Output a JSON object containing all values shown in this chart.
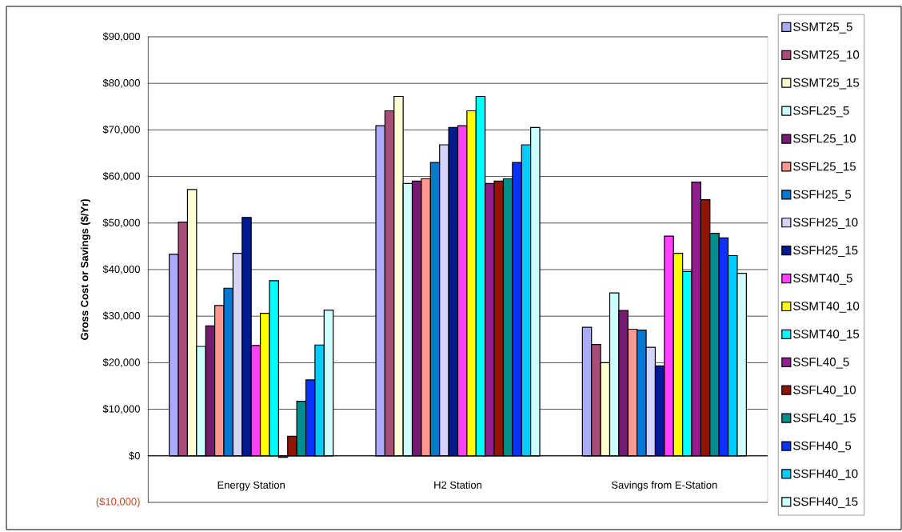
{
  "chart_data": {
    "type": "bar",
    "ylabel": "Gross Cost or Savings ($/Yr)",
    "categories": [
      "Energy Station",
      "H2 Station",
      "Savings from E-Station"
    ],
    "ylim": [
      -10000,
      90000
    ],
    "yticks": [
      {
        "value": -10000,
        "label": "($10,000)"
      },
      {
        "value": 0,
        "label": "$0"
      },
      {
        "value": 10000,
        "label": "$10,000"
      },
      {
        "value": 20000,
        "label": "$20,000"
      },
      {
        "value": 30000,
        "label": "$30,000"
      },
      {
        "value": 40000,
        "label": "$40,000"
      },
      {
        "value": 50000,
        "label": "$50,000"
      },
      {
        "value": 60000,
        "label": "$60,000"
      },
      {
        "value": 70000,
        "label": "$70,000"
      },
      {
        "value": 80000,
        "label": "$80,000"
      },
      {
        "value": 90000,
        "label": "$90,000"
      }
    ],
    "grid": "y",
    "legend": "right",
    "series": [
      {
        "name": "SSMT25_5",
        "color": "#aaaaff",
        "values": [
          43300,
          70900,
          27600
        ]
      },
      {
        "name": "SSMT25_10",
        "color": "#a84c78",
        "values": [
          50200,
          74100,
          23900
        ]
      },
      {
        "name": "SSMT25_15",
        "color": "#ffffd4",
        "values": [
          57200,
          77200,
          20000
        ]
      },
      {
        "name": "SSFL25_5",
        "color": "#ccffff",
        "values": [
          23500,
          58500,
          35000
        ]
      },
      {
        "name": "SSFL25_10",
        "color": "#761a70",
        "values": [
          27900,
          59000,
          31200
        ]
      },
      {
        "name": "SSFL25_15",
        "color": "#ff9890",
        "values": [
          32300,
          59500,
          27200
        ]
      },
      {
        "name": "SSFH25_5",
        "color": "#0078d4",
        "values": [
          36000,
          63000,
          27000
        ]
      },
      {
        "name": "SSFH25_10",
        "color": "#d4d4ff",
        "values": [
          43500,
          66800,
          23300
        ]
      },
      {
        "name": "SSFH25_15",
        "color": "#001890",
        "values": [
          51200,
          70500,
          19300
        ]
      },
      {
        "name": "SSMT40_5",
        "color": "#ff40ff",
        "values": [
          23700,
          70900,
          47200
        ]
      },
      {
        "name": "SSMT40_10",
        "color": "#ffff00",
        "values": [
          30600,
          74100,
          43500
        ]
      },
      {
        "name": "SSMT40_15",
        "color": "#00ffff",
        "values": [
          37600,
          77200,
          39600
        ]
      },
      {
        "name": "SSFL40_5",
        "color": "#901e8e",
        "values": [
          -300,
          58500,
          58800
        ]
      },
      {
        "name": "SSFL40_10",
        "color": "#901400",
        "values": [
          4200,
          59000,
          55000
        ]
      },
      {
        "name": "SSFL40_15",
        "color": "#008e8a",
        "values": [
          11700,
          59500,
          47800
        ]
      },
      {
        "name": "SSFH40_5",
        "color": "#0a32ff",
        "values": [
          16300,
          63000,
          46800
        ]
      },
      {
        "name": "SSFH40_10",
        "color": "#00ccff",
        "values": [
          23800,
          66800,
          43000
        ]
      },
      {
        "name": "SSFH40_15",
        "color": "#ccffff",
        "values": [
          31300,
          70500,
          39200
        ]
      }
    ]
  }
}
